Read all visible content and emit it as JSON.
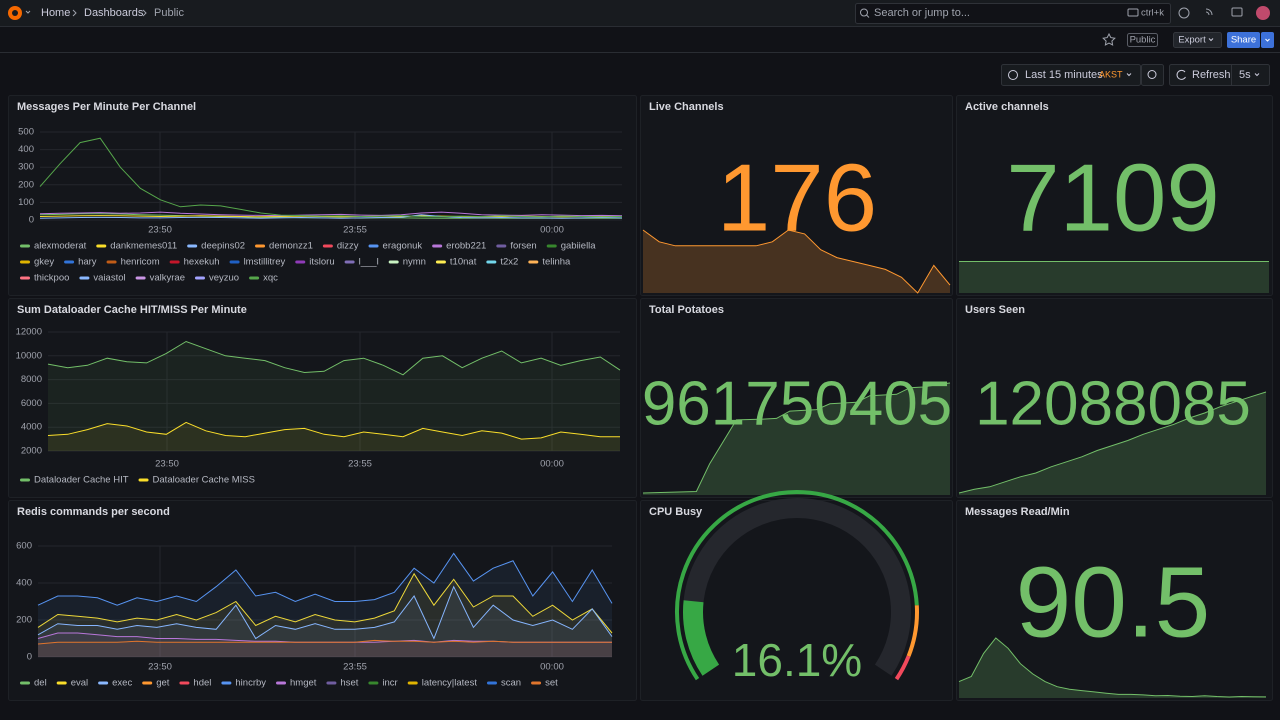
{
  "topbar": {
    "breadcrumbs": [
      "Home",
      "Dashboards",
      "Public"
    ],
    "search_placeholder": "Search or jump to...",
    "shortcut": "ctrl+k"
  },
  "subbar": {
    "badge": "Public",
    "export": "Export",
    "share": "Share"
  },
  "toolbar": {
    "time_range": "Last 15 minutes",
    "timezone": "AKST",
    "refresh": "Refresh",
    "interval": "5s"
  },
  "timeseries": [
    {
      "title": "Messages Per Minute Per Channel",
      "type": "line",
      "fill": false,
      "ylim": [
        0,
        500
      ],
      "yticks": [
        0,
        100,
        200,
        300,
        400,
        500
      ],
      "xticks": [
        "23:50",
        "23:55",
        "00:00"
      ],
      "grid": true,
      "series": [
        {
          "name": "alexmoderat",
          "color": "#73bf69",
          "values": [
            30,
            32,
            35,
            36,
            34,
            30,
            28,
            25,
            22,
            20,
            18,
            15,
            14,
            13,
            12,
            12,
            11,
            12,
            12,
            11,
            10,
            10,
            11,
            10,
            10,
            10,
            11,
            10,
            10,
            10
          ]
        },
        {
          "name": "dankmemes011",
          "color": "#fade2a",
          "values": [
            20,
            22,
            24,
            25,
            24,
            22,
            20,
            22,
            24,
            22,
            20,
            18,
            20,
            22,
            20,
            18,
            20,
            22,
            20,
            24,
            22,
            20,
            18,
            20,
            22,
            20,
            18,
            20,
            22,
            20
          ]
        },
        {
          "name": "deepins02",
          "color": "#8ab8ff",
          "values": [
            10,
            12,
            14,
            15,
            14,
            12,
            12,
            14,
            15,
            14,
            12,
            10,
            12,
            14,
            12,
            10,
            12,
            14,
            16,
            30,
            20,
            14,
            12,
            14,
            12,
            12,
            10,
            12,
            14,
            12
          ]
        },
        {
          "name": "demonzz1",
          "color": "#ff9830"
        },
        {
          "name": "dizzy",
          "color": "#f2495c"
        },
        {
          "name": "eragonuk",
          "color": "#5794f2"
        },
        {
          "name": "erobb221",
          "color": "#b877d9",
          "values": [
            35,
            38,
            40,
            42,
            38,
            40,
            45,
            38,
            34,
            30,
            28,
            26,
            25,
            28,
            30,
            32,
            28,
            26,
            30,
            40,
            45,
            38,
            30,
            28,
            26,
            30,
            28,
            25,
            26,
            24
          ]
        },
        {
          "name": "forsen",
          "color": "#705da0"
        },
        {
          "name": "gabiiella",
          "color": "#37872d"
        },
        {
          "name": "gkey",
          "color": "#e0b400"
        },
        {
          "name": "hary",
          "color": "#3274d9"
        },
        {
          "name": "henricom",
          "color": "#c15c17"
        },
        {
          "name": "hexekuh",
          "color": "#c4162a"
        },
        {
          "name": "lmstillitrey",
          "color": "#1f60c4"
        },
        {
          "name": "itsloru",
          "color": "#8f3bb8"
        },
        {
          "name": "l___l",
          "color": "#806eb7"
        },
        {
          "name": "nymn",
          "color": "#c8f2c2"
        },
        {
          "name": "t10nat",
          "color": "#ffee52"
        },
        {
          "name": "t2x2",
          "color": "#73d7ec"
        },
        {
          "name": "telinha",
          "color": "#ffb357"
        },
        {
          "name": "thickpoo",
          "color": "#ff7383"
        },
        {
          "name": "vaiastol",
          "color": "#8ab8ff"
        },
        {
          "name": "valkyrae",
          "color": "#ca95e5"
        },
        {
          "name": "veyzuo",
          "color": "#a3a3ff"
        },
        {
          "name": "xqc",
          "color": "#56a64b",
          "values": [
            190,
            320,
            440,
            465,
            300,
            180,
            115,
            75,
            85,
            80,
            60,
            40,
            28,
            25,
            22,
            24,
            20,
            22,
            25,
            20,
            18,
            22,
            20,
            24,
            20,
            18,
            22,
            20,
            18,
            20
          ]
        }
      ]
    },
    {
      "title": "Sum Dataloader Cache HIT/MISS Per Minute",
      "type": "line",
      "fill": true,
      "ylim": [
        2000,
        12000
      ],
      "yticks": [
        2000,
        4000,
        6000,
        8000,
        10000,
        12000
      ],
      "xticks": [
        "23:50",
        "23:55",
        "00:00"
      ],
      "grid": true,
      "series": [
        {
          "name": "Dataloader Cache HIT",
          "color": "#73bf69",
          "values": [
            9300,
            9000,
            9200,
            9800,
            9500,
            9400,
            10200,
            11200,
            10600,
            10000,
            9800,
            9600,
            9000,
            8600,
            8700,
            9600,
            9800,
            9200,
            8400,
            9800,
            10000,
            9000,
            9800,
            10400,
            9400,
            9800,
            9200,
            9600,
            9900,
            8800
          ]
        },
        {
          "name": "Dataloader Cache MISS",
          "color": "#fade2a",
          "values": [
            3300,
            3400,
            3800,
            4300,
            4100,
            3600,
            3400,
            4400,
            3700,
            3300,
            3200,
            3500,
            3800,
            3900,
            3400,
            3200,
            3600,
            3400,
            3200,
            3900,
            3600,
            3300,
            3700,
            3500,
            3000,
            3100,
            3600,
            3400,
            3200,
            3200
          ]
        }
      ]
    },
    {
      "title": "Redis commands per second",
      "type": "line",
      "fill": true,
      "ylim": [
        0,
        600
      ],
      "yticks": [
        0,
        200,
        400,
        600
      ],
      "xticks": [
        "23:50",
        "23:55",
        "00:00"
      ],
      "grid": true,
      "series": [
        {
          "name": "del",
          "color": "#73bf69"
        },
        {
          "name": "eval",
          "color": "#fade2a",
          "values": [
            160,
            230,
            220,
            210,
            190,
            210,
            200,
            230,
            200,
            240,
            300,
            170,
            220,
            190,
            230,
            200,
            190,
            210,
            250,
            450,
            280,
            420,
            270,
            330,
            330,
            220,
            280,
            200,
            260,
            130
          ]
        },
        {
          "name": "exec",
          "color": "#8ab8ff",
          "values": [
            120,
            180,
            170,
            170,
            150,
            170,
            160,
            180,
            160,
            150,
            280,
            100,
            170,
            150,
            180,
            150,
            150,
            160,
            190,
            330,
            100,
            380,
            160,
            280,
            200,
            170,
            200,
            150,
            260,
            110
          ]
        },
        {
          "name": "get",
          "color": "#ff9830"
        },
        {
          "name": "hdel",
          "color": "#f2495c"
        },
        {
          "name": "hincrby",
          "color": "#5794f2",
          "values": [
            280,
            330,
            330,
            320,
            280,
            320,
            300,
            330,
            300,
            380,
            470,
            330,
            350,
            300,
            340,
            300,
            300,
            310,
            350,
            480,
            400,
            560,
            410,
            480,
            520,
            330,
            460,
            300,
            470,
            290
          ]
        },
        {
          "name": "hmget",
          "color": "#b877d9",
          "values": [
            100,
            130,
            130,
            120,
            110,
            110,
            100,
            100,
            95,
            95,
            90,
            85,
            85,
            80,
            80,
            80,
            80,
            80,
            85,
            90,
            80,
            90,
            85,
            85,
            80,
            80,
            80,
            80,
            80,
            80
          ]
        },
        {
          "name": "hset",
          "color": "#705da0"
        },
        {
          "name": "incr",
          "color": "#37872d"
        },
        {
          "name": "latency|latest",
          "color": "#e0b400"
        },
        {
          "name": "scan",
          "color": "#3274d9"
        },
        {
          "name": "set",
          "color": "#e0752d",
          "values": [
            70,
            80,
            80,
            80,
            80,
            85,
            80,
            80,
            80,
            80,
            80,
            80,
            80,
            80,
            80,
            80,
            80,
            90,
            85,
            85,
            80,
            85,
            80,
            85,
            80,
            80,
            80,
            80,
            80,
            80
          ]
        }
      ]
    }
  ],
  "stats": [
    {
      "title": "Live Channels",
      "type": "stat",
      "value": 176,
      "color": "#ff9830",
      "sparkline": [
        190,
        187,
        186,
        186,
        186,
        186,
        186,
        186,
        187,
        190,
        189,
        185,
        183,
        182,
        181,
        180,
        178,
        174,
        181,
        176
      ]
    },
    {
      "title": "Active channels",
      "type": "stat",
      "value": 7109,
      "color": "#73bf69",
      "sparkline": [
        7109,
        7109,
        7109,
        7109,
        7109,
        7109,
        7109,
        7109,
        7109,
        7109,
        7109,
        7109
      ]
    },
    {
      "title": "Total Potatoes",
      "type": "stat",
      "value": 961750405,
      "color": "#73bf69",
      "sparkline": [
        961600000,
        961600500,
        961601000,
        961601500,
        961602000,
        961640000,
        961670000,
        961700000,
        961700500,
        961701000,
        961702000,
        961712000,
        961713000,
        961714000,
        961722000,
        961723000,
        961724000,
        961733000,
        961734000,
        961735000,
        961744000,
        961745000,
        961748000,
        961750405
      ]
    },
    {
      "title": "Users Seen",
      "type": "stat",
      "value": 12088085,
      "color": "#73bf69",
      "sparkline": [
        12080000,
        12080300,
        12080500,
        12080900,
        12081300,
        12081600,
        12082100,
        12082500,
        12082900,
        12083400,
        12083800,
        12084200,
        12084700,
        12085100,
        12085500,
        12086000,
        12086400,
        12086900,
        12087300,
        12087700,
        12088085
      ]
    },
    {
      "title": "CPU Busy",
      "type": "gauge",
      "value": 16.1,
      "value_label": "16.1%",
      "range": [
        0,
        100
      ],
      "color": "#73bf69",
      "thresholds": [
        {
          "value": 0,
          "color": "#37a845"
        },
        {
          "value": 85,
          "color": "#ff9830"
        },
        {
          "value": 95,
          "color": "#f2495c"
        }
      ]
    },
    {
      "title": "Messages Read/Min",
      "type": "stat",
      "value": 90.5,
      "color": "#73bf69",
      "sparkline": [
        150,
        170,
        260,
        320,
        280,
        220,
        180,
        150,
        130,
        120,
        115,
        110,
        105,
        100,
        100,
        98,
        95,
        96,
        93,
        92,
        95,
        92,
        90,
        92,
        91,
        90.5
      ]
    }
  ]
}
